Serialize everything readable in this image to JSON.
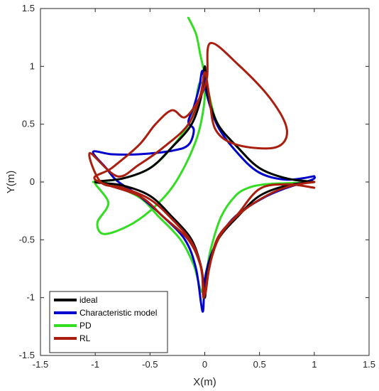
{
  "chart_data": {
    "type": "line",
    "title": "",
    "xlabel": "X(m)",
    "ylabel": "Y(m)",
    "xlim": [
      -1.5,
      1.5
    ],
    "ylim": [
      -1.5,
      1.5
    ],
    "xticks": [
      "-1.5",
      "-1",
      "-0.5",
      "0",
      "0.5",
      "1",
      "1.5"
    ],
    "yticks": [
      "-1.5",
      "-1",
      "-0.5",
      "0",
      "0.5",
      "1",
      "1.5"
    ],
    "grid": false,
    "legend_position": "bottom-left",
    "series": [
      {
        "name": "ideal",
        "color": "#000000",
        "points": [
          [
            1.0,
            0.0
          ],
          [
            0.75,
            0.03
          ],
          [
            0.5,
            0.12
          ],
          [
            0.3,
            0.3
          ],
          [
            0.12,
            0.5
          ],
          [
            0.03,
            0.75
          ],
          [
            0.0,
            1.0
          ],
          [
            -0.03,
            0.75
          ],
          [
            -0.12,
            0.5
          ],
          [
            -0.3,
            0.3
          ],
          [
            -0.5,
            0.12
          ],
          [
            -0.75,
            0.03
          ],
          [
            -1.0,
            0.0
          ],
          [
            -0.75,
            -0.03
          ],
          [
            -0.5,
            -0.12
          ],
          [
            -0.3,
            -0.3
          ],
          [
            -0.12,
            -0.5
          ],
          [
            -0.03,
            -0.75
          ],
          [
            0.0,
            -1.0
          ],
          [
            0.03,
            -0.75
          ],
          [
            0.12,
            -0.5
          ],
          [
            0.3,
            -0.3
          ],
          [
            0.5,
            -0.12
          ],
          [
            0.75,
            -0.03
          ],
          [
            1.0,
            0.0
          ]
        ]
      },
      {
        "name": "Characteristic model",
        "color": "#0000cc",
        "points": [
          [
            1.0,
            0.05
          ],
          [
            0.75,
            0.02
          ],
          [
            0.5,
            0.08
          ],
          [
            0.3,
            0.25
          ],
          [
            0.12,
            0.48
          ],
          [
            0.02,
            0.75
          ],
          [
            -0.02,
            0.96
          ],
          [
            -0.05,
            0.82
          ],
          [
            -0.1,
            0.65
          ],
          [
            -0.15,
            0.52
          ],
          [
            -0.1,
            0.45
          ],
          [
            -0.15,
            0.32
          ],
          [
            -0.3,
            0.27
          ],
          [
            -0.6,
            0.24
          ],
          [
            -0.85,
            0.24
          ],
          [
            -1.02,
            0.26
          ],
          [
            -0.9,
            0.12
          ],
          [
            -0.8,
            0.01
          ],
          [
            -0.6,
            -0.12
          ],
          [
            -0.38,
            -0.3
          ],
          [
            -0.18,
            -0.5
          ],
          [
            -0.08,
            -0.75
          ],
          [
            -0.02,
            -1.12
          ],
          [
            0.0,
            -0.85
          ],
          [
            0.05,
            -0.65
          ],
          [
            0.15,
            -0.45
          ],
          [
            0.3,
            -0.28
          ],
          [
            0.55,
            -0.13
          ],
          [
            0.75,
            -0.05
          ],
          [
            0.98,
            0.02
          ],
          [
            1.0,
            0.05
          ]
        ]
      },
      {
        "name": "PD",
        "color": "#33dd22",
        "points": [
          [
            -0.15,
            1.42
          ],
          [
            -0.08,
            1.28
          ],
          [
            -0.04,
            1.1
          ],
          [
            0.0,
            0.93
          ],
          [
            0.04,
            0.75
          ],
          [
            0.12,
            0.5
          ],
          [
            0.3,
            0.3
          ],
          [
            0.5,
            0.12
          ],
          [
            0.75,
            0.03
          ],
          [
            1.0,
            0.0
          ],
          [
            0.75,
            -0.01
          ],
          [
            0.55,
            -0.02
          ],
          [
            0.4,
            -0.05
          ],
          [
            0.28,
            -0.12
          ],
          [
            0.15,
            -0.3
          ],
          [
            0.05,
            -0.6
          ],
          [
            -0.02,
            -0.95
          ],
          [
            -0.1,
            -0.72
          ],
          [
            -0.22,
            -0.5
          ],
          [
            -0.42,
            -0.3
          ],
          [
            -0.62,
            -0.12
          ],
          [
            -1.0,
            0.01
          ],
          [
            -0.88,
            -0.18
          ],
          [
            -0.98,
            -0.35
          ],
          [
            -0.92,
            -0.45
          ],
          [
            -0.7,
            -0.38
          ],
          [
            -0.5,
            -0.25
          ],
          [
            -0.3,
            -0.05
          ],
          [
            -0.15,
            0.2
          ],
          [
            -0.05,
            0.45
          ],
          [
            0.0,
            0.75
          ],
          [
            -0.05,
            0.85
          ],
          [
            -0.12,
            0.55
          ],
          [
            -0.3,
            0.3
          ],
          [
            -0.5,
            0.12
          ],
          [
            -0.75,
            0.03
          ],
          [
            -1.02,
            0.0
          ]
        ]
      },
      {
        "name": "RL",
        "color": "#aa1e10",
        "points": [
          [
            1.0,
            -0.05
          ],
          [
            0.75,
            -0.02
          ],
          [
            0.5,
            -0.06
          ],
          [
            0.3,
            -0.28
          ],
          [
            0.12,
            -0.48
          ],
          [
            0.04,
            -0.75
          ],
          [
            0.0,
            -0.97
          ],
          [
            -0.04,
            -0.72
          ],
          [
            -0.15,
            -0.5
          ],
          [
            -0.38,
            -0.3
          ],
          [
            -0.6,
            -0.12
          ],
          [
            -1.0,
            0.02
          ],
          [
            -0.85,
            0.12
          ],
          [
            -0.6,
            0.32
          ],
          [
            -0.45,
            0.5
          ],
          [
            -0.3,
            0.62
          ],
          [
            -0.18,
            0.56
          ],
          [
            -0.05,
            0.72
          ],
          [
            0.02,
            0.9
          ],
          [
            0.05,
            1.2
          ],
          [
            0.3,
            1.02
          ],
          [
            0.6,
            0.72
          ],
          [
            0.75,
            0.45
          ],
          [
            0.65,
            0.3
          ],
          [
            0.3,
            0.32
          ],
          [
            0.1,
            0.45
          ],
          [
            0.04,
            0.75
          ],
          [
            0.0,
            0.95
          ],
          [
            -0.04,
            0.75
          ],
          [
            -0.15,
            0.5
          ],
          [
            -0.35,
            0.32
          ],
          [
            -0.6,
            0.15
          ],
          [
            -0.8,
            0.05
          ],
          [
            -1.05,
            0.25
          ],
          [
            -0.95,
            0.0
          ],
          [
            -0.75,
            -0.05
          ],
          [
            -0.5,
            -0.15
          ],
          [
            -0.3,
            -0.32
          ],
          [
            -0.12,
            -0.52
          ],
          [
            -0.03,
            -0.75
          ],
          [
            -0.01,
            -1.0
          ],
          [
            0.05,
            -0.7
          ],
          [
            0.15,
            -0.45
          ],
          [
            0.35,
            -0.25
          ],
          [
            0.6,
            -0.1
          ],
          [
            0.8,
            -0.03
          ],
          [
            1.0,
            0.0
          ]
        ]
      }
    ]
  }
}
